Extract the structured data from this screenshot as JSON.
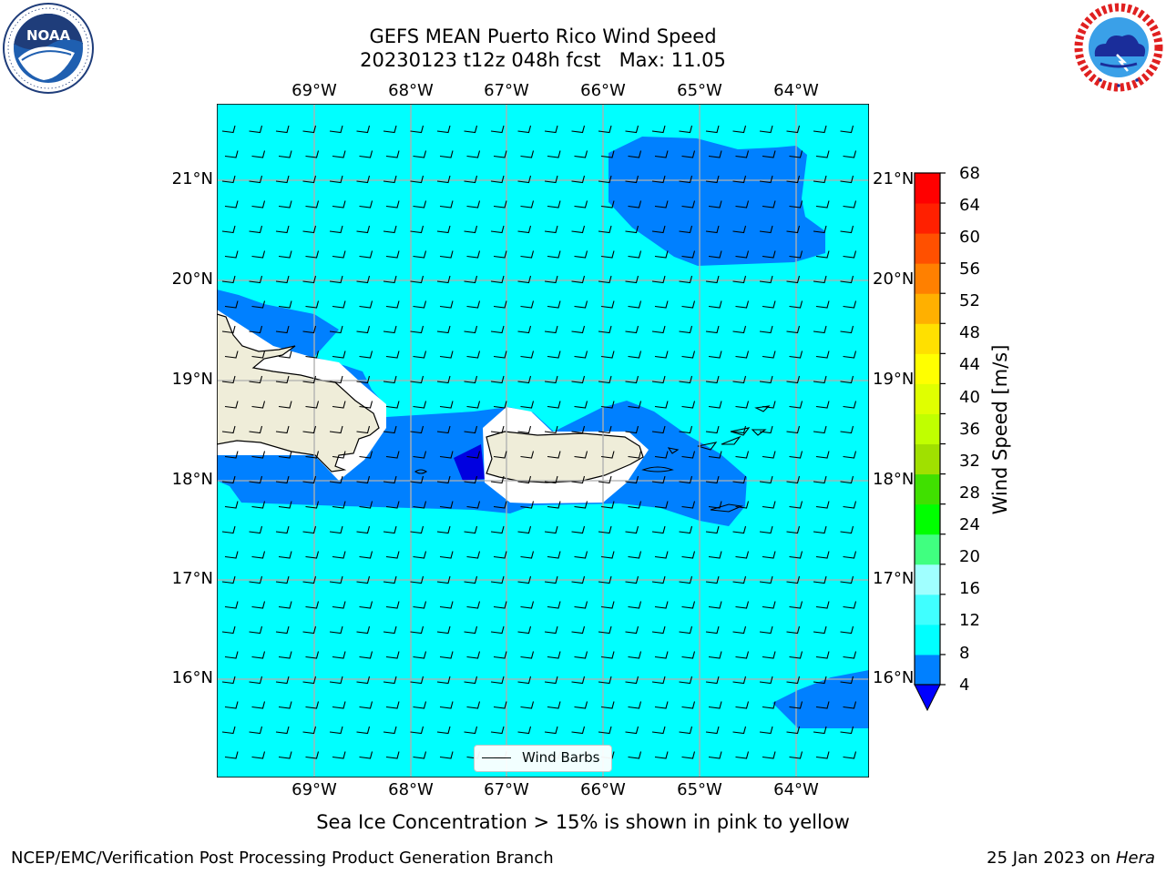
{
  "title": {
    "line1": "GEFS MEAN Puerto Rico Wind Speed",
    "line2": "20230123 t12z 048h fcst   Max: 11.05"
  },
  "logos": {
    "left": "noaa-logo",
    "left_text": "NOAA",
    "right": "nws-logo"
  },
  "map": {
    "lon_labels": [
      "69°W",
      "68°W",
      "67°W",
      "66°W",
      "65°W",
      "64°W"
    ],
    "lat_labels": [
      "21°N",
      "20°N",
      "19°N",
      "18°N",
      "17°N",
      "16°N"
    ],
    "colors": {
      "ocean_8_12": "#00ffff",
      "band_4_8": "#0080ff",
      "band_below_4": "#0000e0",
      "land": "#efedd9",
      "grid": "#b0b0b0",
      "coast": "#000000"
    }
  },
  "colorbar": {
    "title": "Wind Speed [m/s]",
    "ticks": [
      "4",
      "8",
      "12",
      "16",
      "20",
      "24",
      "28",
      "32",
      "36",
      "40",
      "44",
      "48",
      "52",
      "56",
      "60",
      "64",
      "68"
    ],
    "colors": [
      "#0080ff",
      "#00ffff",
      "#40ffff",
      "#a0ffff",
      "#40ff80",
      "#00ff00",
      "#40e000",
      "#a0e000",
      "#c0ff00",
      "#e0ff00",
      "#ffff00",
      "#ffe000",
      "#ffb000",
      "#ff8000",
      "#ff5000",
      "#ff2000",
      "#ff0000"
    ],
    "under_color": "#0000ff"
  },
  "legend": {
    "label": "Wind Barbs"
  },
  "subtitle": "Sea Ice Concentration > 15% is shown in pink to yellow",
  "footer": {
    "left": "NCEP/EMC/Verification Post Processing Product Generation Branch",
    "right_prefix": "25 Jan 2023 on ",
    "right_italic": "Hera"
  }
}
